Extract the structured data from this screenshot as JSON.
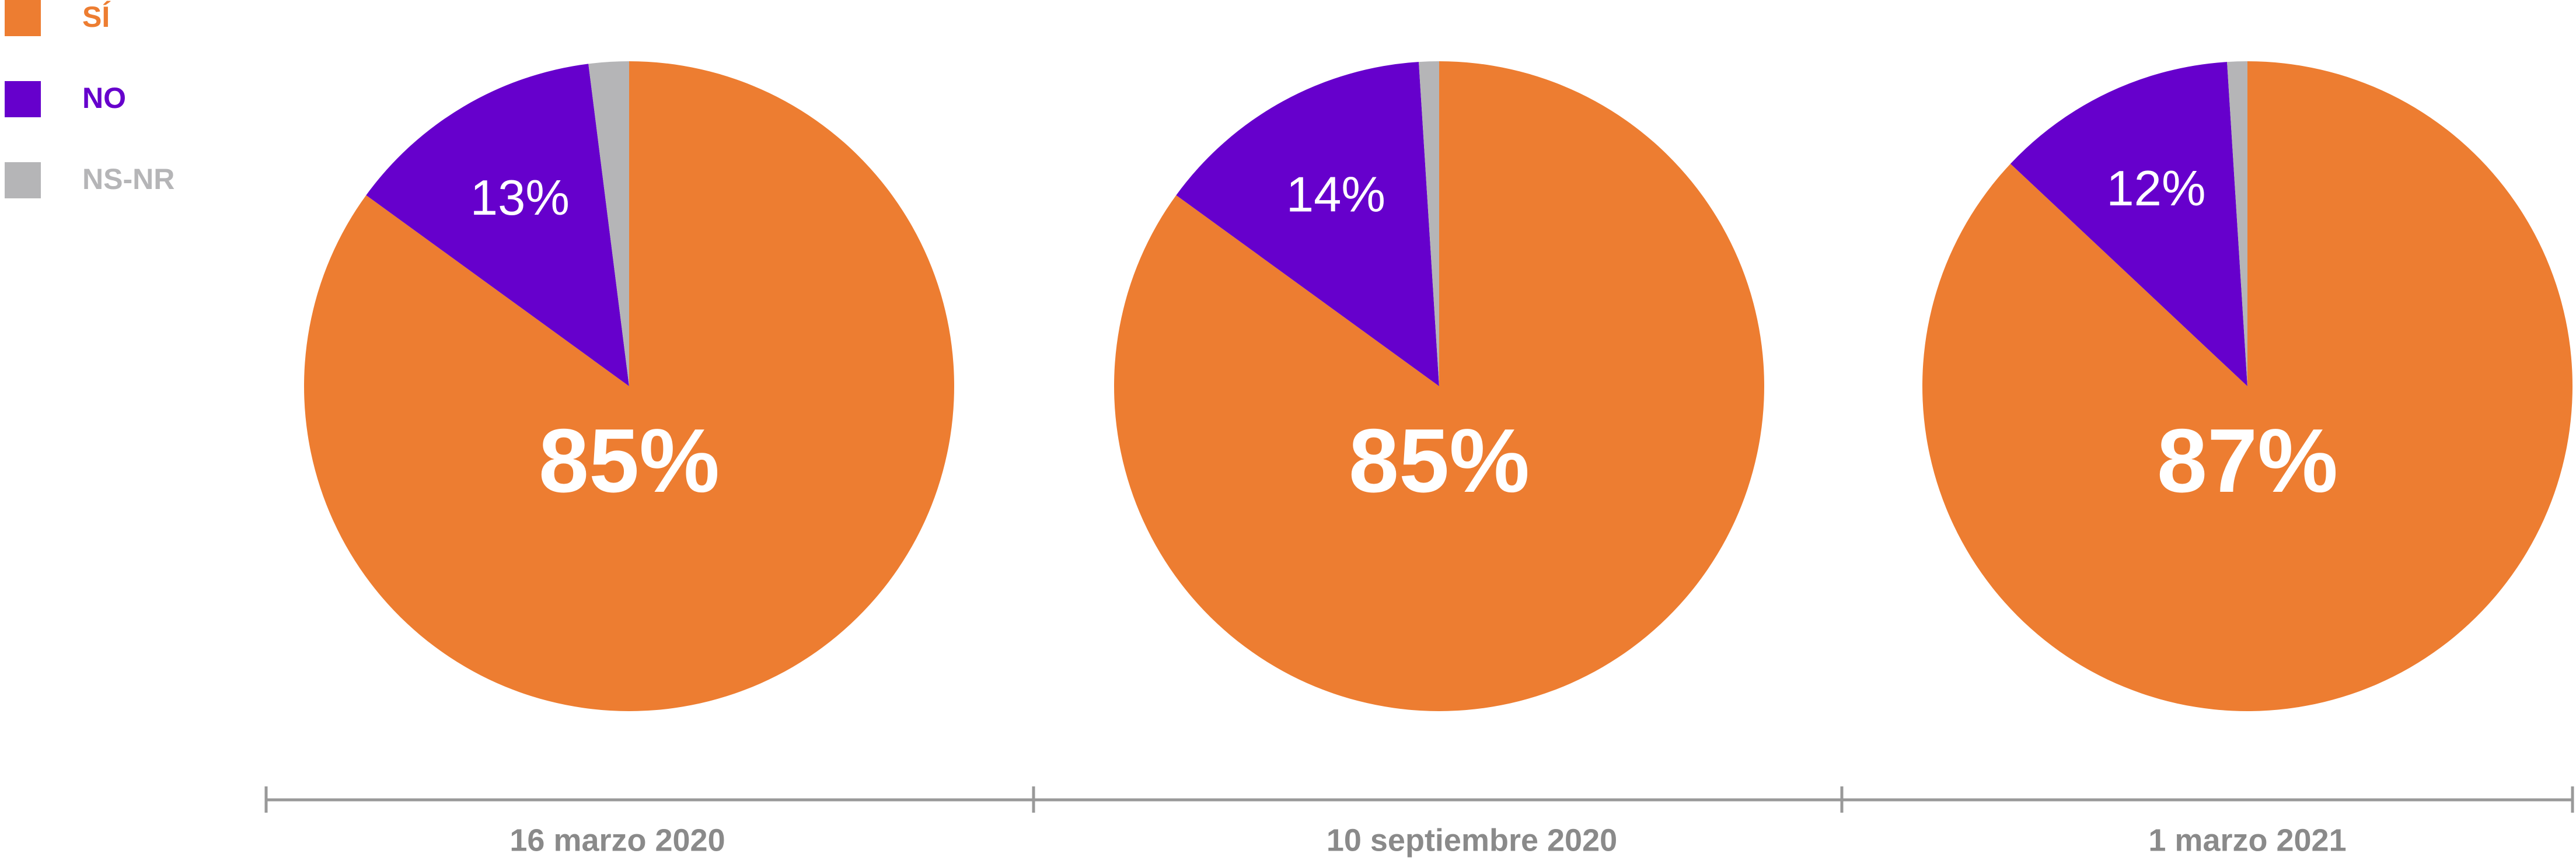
{
  "chart_data": [
    {
      "type": "pie",
      "label": "16 marzo 2020",
      "categories": [
        "SÍ",
        "NO",
        "NS-NR"
      ],
      "values": [
        85,
        13,
        2
      ],
      "value_labels": [
        "85%",
        "13%",
        null
      ],
      "colors": [
        "#ED7D31",
        "#6600CC",
        "#B5B5B7"
      ]
    },
    {
      "type": "pie",
      "label": "10 septiembre 2020",
      "categories": [
        "SÍ",
        "NO",
        "NS-NR"
      ],
      "values": [
        85,
        14,
        1
      ],
      "value_labels": [
        "85%",
        "14%",
        null
      ],
      "colors": [
        "#ED7D31",
        "#6600CC",
        "#B5B5B7"
      ]
    },
    {
      "type": "pie",
      "label": "1 marzo 2021",
      "categories": [
        "SÍ",
        "NO",
        "NS-NR"
      ],
      "values": [
        87,
        12,
        1
      ],
      "value_labels": [
        "87%",
        "12%",
        null
      ],
      "colors": [
        "#ED7D31",
        "#6600CC",
        "#B5B5B7"
      ]
    }
  ]
}
